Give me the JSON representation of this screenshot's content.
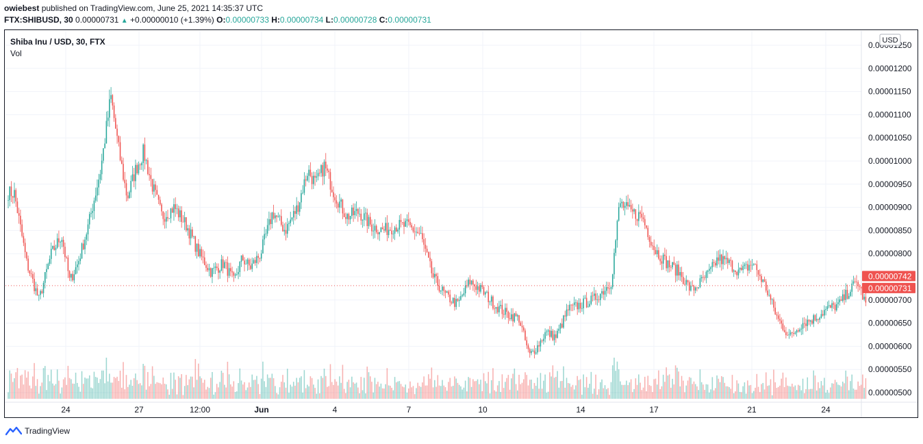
{
  "header": {
    "user": "owiebest",
    "published_text": "published on TradingView.com, June 25, 2021 14:35:37 UTC"
  },
  "ohlc": {
    "symbol": "FTX:SHIBUSD, 30",
    "last": "0.00000731",
    "change": "+0.00000010 (+1.39%)",
    "open_label": "O:",
    "open": "0.00000733",
    "high_label": "H:",
    "high": "0.00000734",
    "low_label": "L:",
    "low": "0.00000728",
    "close_label": "C:",
    "close": "0.00000731"
  },
  "legend": {
    "title": "Shiba Inu / USD, 30, FTX",
    "volume": "Vol"
  },
  "footer": {
    "brand": "TradingView"
  },
  "colors": {
    "up": "#26a69a",
    "down": "#ef5350",
    "grid": "#f0f3fa",
    "text": "#131722"
  },
  "chart_data": {
    "type": "candlestick",
    "symbol": "FTX:SHIBUSD",
    "interval": "30",
    "currency": "USD",
    "ylim": [
      5e-06,
      1.25e-05
    ],
    "y_ticks": [
      "0.00001250",
      "0.00001200",
      "0.00001150",
      "0.00001100",
      "0.00001050",
      "0.00001000",
      "0.00000950",
      "0.00000900",
      "0.00000850",
      "0.00000800",
      "0.00000750",
      "0.00000700",
      "0.00000650",
      "0.00000600",
      "0.00000550",
      "0.00000500"
    ],
    "x_ticks": [
      "24",
      "27",
      "12:00",
      "Jun",
      "4",
      "7",
      "10",
      "14",
      "17",
      "21",
      "24"
    ],
    "price_labels": [
      {
        "value": 7.42e-06,
        "text": "0.00000742"
      },
      {
        "value": 7.31e-06,
        "text": "0.00000731"
      }
    ],
    "last_price": 7.31e-06,
    "close_path": [
      [
        "May 22",
        9.3e-06
      ],
      [
        "May 22",
        7.8e-06
      ],
      [
        "May 23",
        7e-06
      ],
      [
        "May 23",
        8e-06
      ],
      [
        "May 24",
        8.4e-06
      ],
      [
        "May 24",
        7.4e-06
      ],
      [
        "May 24",
        7.8e-06
      ],
      [
        "May 25",
        8.6e-06
      ],
      [
        "May 25",
        9.8e-06
      ],
      [
        "May 26",
        1.14e-05
      ],
      [
        "May 26",
        1.02e-05
      ],
      [
        "May 26",
        9.2e-06
      ],
      [
        "May 27",
        9.8e-06
      ],
      [
        "May 27",
        1.02e-05
      ],
      [
        "May 27",
        9.5e-06
      ],
      [
        "May 28",
        8.8e-06
      ],
      [
        "May 28",
        9e-06
      ],
      [
        "May 29",
        8.6e-06
      ],
      [
        "May 29",
        8e-06
      ],
      [
        "May 30",
        7.6e-06
      ],
      [
        "May 30",
        7.8e-06
      ],
      [
        "May 31",
        7.4e-06
      ],
      [
        "May 31",
        7.9e-06
      ],
      [
        "May 31",
        7.7e-06
      ],
      [
        "Jun 1",
        8e-06
      ],
      [
        "Jun 1",
        8.9e-06
      ],
      [
        "Jun 2",
        8.5e-06
      ],
      [
        "Jun 2",
        9e-06
      ],
      [
        "Jun 3",
        9.8e-06
      ],
      [
        "Jun 3",
        9.5e-06
      ],
      [
        "Jun 3",
        9.9e-06
      ],
      [
        "Jun 4",
        9.3e-06
      ],
      [
        "Jun 4",
        8.8e-06
      ],
      [
        "Jun 5",
        8.9e-06
      ],
      [
        "Jun 5",
        8.6e-06
      ],
      [
        "Jun 6",
        8.5e-06
      ],
      [
        "Jun 6",
        8.6e-06
      ],
      [
        "Jun 7",
        8.6e-06
      ],
      [
        "Jun 7",
        8.4e-06
      ],
      [
        "Jun 8",
        7.5e-06
      ],
      [
        "Jun 8",
        7.1e-06
      ],
      [
        "Jun 9",
        6.9e-06
      ],
      [
        "Jun 9",
        7.4e-06
      ],
      [
        "Jun 10",
        7.2e-06
      ],
      [
        "Jun 10",
        6.9e-06
      ],
      [
        "Jun 11",
        6.7e-06
      ],
      [
        "Jun 11",
        6.6e-06
      ],
      [
        "Jun 12",
        5.8e-06
      ],
      [
        "Jun 12",
        6e-06
      ],
      [
        "Jun 12",
        6.3e-06
      ],
      [
        "Jun 13",
        6.2e-06
      ],
      [
        "Jun 13",
        6.8e-06
      ],
      [
        "Jun 14",
        6.9e-06
      ],
      [
        "Jun 14",
        7e-06
      ],
      [
        "Jun 15",
        7.2e-06
      ],
      [
        "Jun 15",
        7.4e-06
      ],
      [
        "Jun 15",
        9.1e-06
      ],
      [
        "Jun 16",
        8.9e-06
      ],
      [
        "Jun 16",
        8.8e-06
      ],
      [
        "Jun 17",
        8.1e-06
      ],
      [
        "Jun 17",
        7.8e-06
      ],
      [
        "Jun 18",
        7.6e-06
      ],
      [
        "Jun 18",
        7.2e-06
      ],
      [
        "Jun 19",
        7.4e-06
      ],
      [
        "Jun 19",
        7.6e-06
      ],
      [
        "Jun 19",
        7.9e-06
      ],
      [
        "Jun 20",
        7.8e-06
      ],
      [
        "Jun 20",
        7.6e-06
      ],
      [
        "Jun 21",
        7.8e-06
      ],
      [
        "Jun 21",
        7.3e-06
      ],
      [
        "Jun 22",
        6.6e-06
      ],
      [
        "Jun 22",
        6.2e-06
      ],
      [
        "Jun 23",
        6.5e-06
      ],
      [
        "Jun 23",
        6.6e-06
      ],
      [
        "Jun 24",
        6.8e-06
      ],
      [
        "Jun 24",
        6.9e-06
      ],
      [
        "Jun 25",
        7.2e-06
      ],
      [
        "Jun 25",
        7.4e-06
      ],
      [
        "Jun 25",
        6.9e-06
      ]
    ]
  }
}
